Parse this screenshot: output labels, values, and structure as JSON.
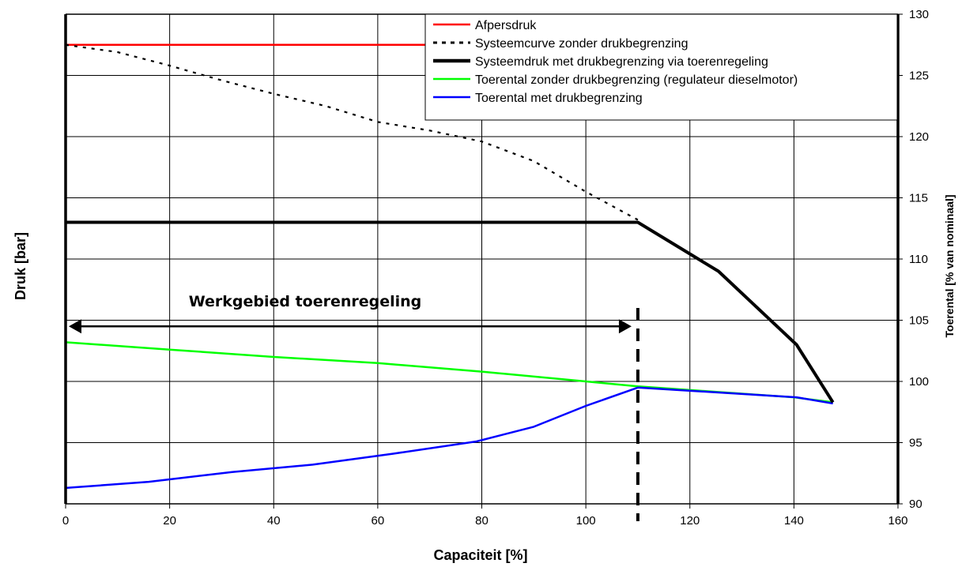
{
  "chart_data": {
    "type": "line",
    "xlabel": "Capaciteit [%]",
    "ylabel": "Druk [bar]",
    "y2label": "Toerental [% van nominaal]",
    "xlim": [
      0,
      160
    ],
    "ylim": [
      90,
      130
    ],
    "y2lim": [
      90,
      130
    ],
    "xticks": [
      "0",
      "20",
      "40",
      "60",
      "80",
      "100",
      "120",
      "140",
      "160"
    ],
    "y2ticks": [
      "90",
      "95",
      "100",
      "105",
      "110",
      "115",
      "120",
      "125",
      "130"
    ],
    "grid": true,
    "legend_position": "top-right",
    "series": [
      {
        "name": "Afpersdruk",
        "color": "#ff0000",
        "style": "solid",
        "axis": "left",
        "x": [
          0,
          160
        ],
        "y": [
          127.5,
          127.5
        ]
      },
      {
        "name": "Systeemcurve zonder drukbegrenzing",
        "color": "#000000",
        "style": "dotted",
        "axis": "left",
        "x": [
          0,
          10,
          20,
          30,
          40,
          50,
          60,
          70,
          80,
          90,
          100,
          110
        ],
        "y": [
          127.5,
          126.9,
          125.8,
          124.6,
          123.5,
          122.5,
          121.2,
          120.5,
          119.6,
          118.0,
          115.5,
          113.2
        ]
      },
      {
        "name": "Systeemdruk met drukbegrenzing via toerenregeling",
        "color": "#000000",
        "style": "thick",
        "axis": "left",
        "x": [
          0,
          110,
          125.5,
          140.5,
          147.5
        ],
        "y": [
          113,
          113,
          109,
          103,
          98.3
        ]
      },
      {
        "name": "Toerental zonder drukbegrenzing (regulateur dieselmotor)",
        "color": "#00ff00",
        "style": "solid",
        "axis": "right",
        "x": [
          0,
          20,
          40,
          60,
          80,
          100,
          110,
          120,
          140,
          147.5
        ],
        "y": [
          103.2,
          102.6,
          102.0,
          101.5,
          100.8,
          100.0,
          99.6,
          99.3,
          98.7,
          98.3
        ]
      },
      {
        "name": "Toerental met drukbegrenzing",
        "color": "#0000ff",
        "style": "solid",
        "axis": "right",
        "x": [
          0,
          16,
          32,
          47.5,
          63,
          79,
          90,
          100,
          110,
          125.5,
          140.5,
          147.5
        ],
        "y": [
          91.3,
          91.8,
          92.6,
          93.2,
          94.1,
          95.1,
          96.3,
          98.0,
          99.5,
          99.1,
          98.7,
          98.2
        ]
      }
    ],
    "annotations": [
      {
        "text": "Werkgebied toerenregeling",
        "arrow_from_x": 0,
        "arrow_to_x": 110,
        "y": 104.5
      },
      {
        "marker": "dashed-vertical",
        "x": 110
      }
    ]
  }
}
